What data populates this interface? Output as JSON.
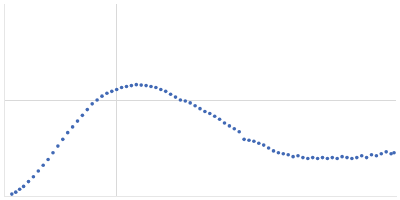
{
  "chart_data": {
    "type": "scatter",
    "x": [
      8,
      12,
      16,
      20,
      25,
      30,
      35,
      40,
      45,
      50,
      55,
      60,
      65,
      70,
      75,
      80,
      85,
      90,
      95,
      100,
      105,
      110,
      115,
      120,
      125,
      130,
      135,
      140,
      145,
      150,
      155,
      160,
      165,
      170,
      175,
      180,
      185,
      190,
      195,
      200,
      205,
      210,
      215,
      220,
      225,
      230,
      235,
      240,
      245,
      250,
      255,
      260,
      265,
      270,
      275,
      280,
      285,
      290,
      295,
      300,
      305,
      310,
      315,
      320,
      325,
      330,
      335,
      340,
      345,
      350,
      355,
      360,
      365,
      370,
      375,
      380,
      385,
      390,
      395,
      398
    ],
    "values": [
      2,
      4,
      7,
      10,
      15,
      20,
      26,
      32,
      38,
      45,
      52,
      59,
      66,
      72,
      78,
      84,
      90,
      96,
      100,
      104,
      107,
      109,
      111,
      113,
      114,
      115,
      116,
      115.5,
      115,
      114,
      113,
      111,
      109,
      106,
      103,
      100,
      99,
      97,
      94,
      91,
      88,
      86,
      83,
      80,
      76,
      73,
      70,
      67,
      59,
      58,
      57,
      55,
      53,
      50,
      47,
      45,
      44,
      43,
      41,
      42,
      40,
      39,
      40,
      39,
      40,
      39,
      40,
      39,
      41,
      40,
      39,
      40,
      42,
      40,
      43,
      42,
      44,
      46,
      44,
      45
    ],
    "color": "#4169b5",
    "xlim": [
      0,
      400
    ],
    "xticks": [
      115
    ],
    "ylim": [
      0,
      200
    ],
    "yticks": [
      100
    ],
    "grid": true,
    "tick_labels": false,
    "marker": "circle"
  }
}
